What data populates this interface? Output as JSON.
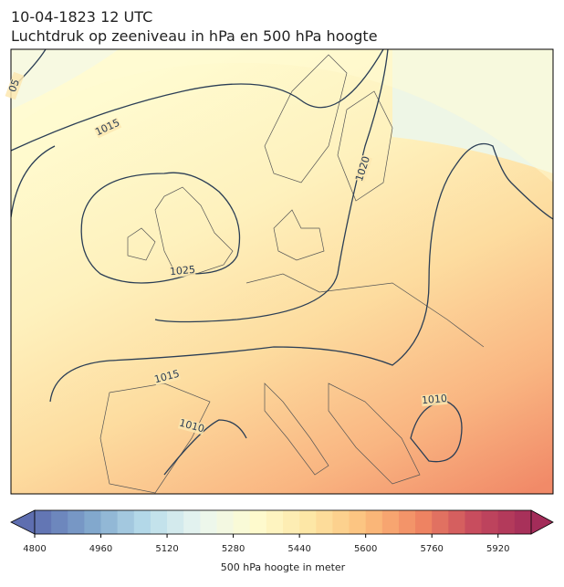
{
  "header": {
    "title": "10-04-1823 12 UTC",
    "subtitle": "Luchtdruk op zeeniveau in hPa en 500 hPa hoogte"
  },
  "contour_labels": [
    "05",
    "1015",
    "1025",
    "1020",
    "1015",
    "1010",
    "1010"
  ],
  "colorbar": {
    "cmap": "RdYlBu_r",
    "lim": [
      4800,
      6000
    ],
    "step": 40,
    "ticks": [
      4800,
      4960,
      5120,
      5280,
      5440,
      5600,
      5760,
      5920
    ],
    "label": "500 hPa hoogte in meter"
  }
}
